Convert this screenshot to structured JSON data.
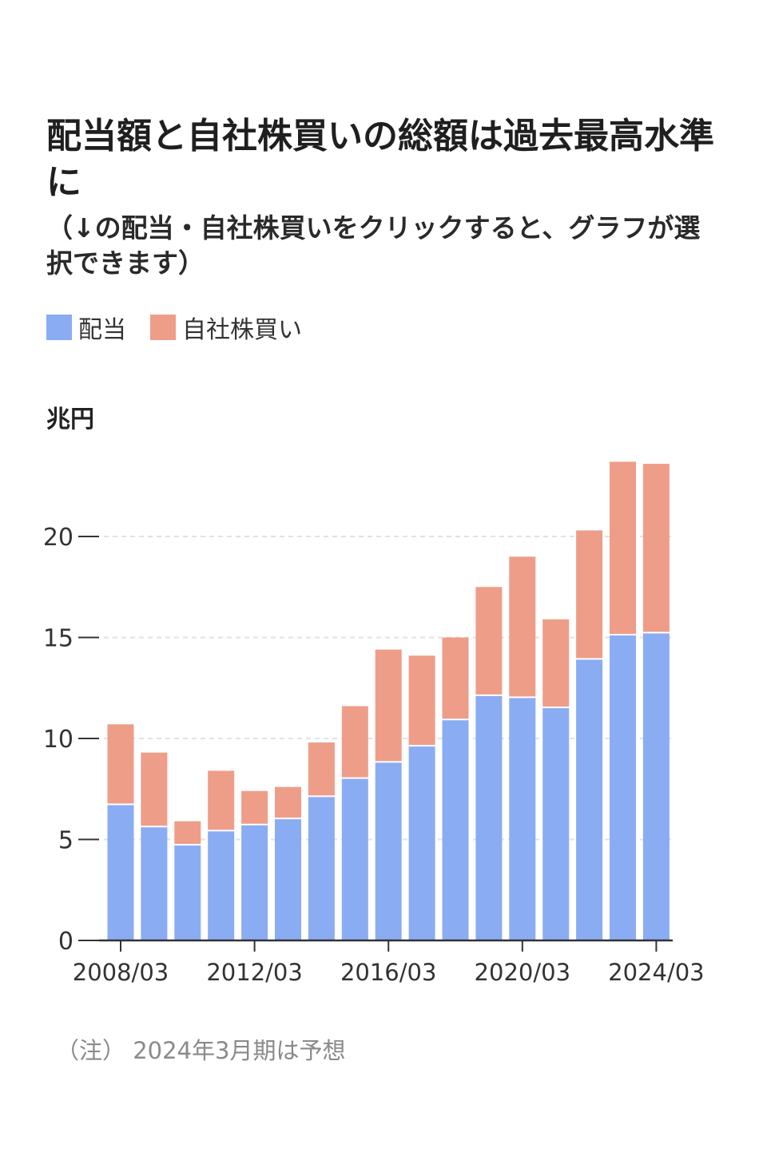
{
  "title": "配当額と自社株買いの総額は過去最高水準に",
  "subtitle": "（↓の配当・自社株買いをクリックすると、グラフが選択できます）",
  "legend": [
    {
      "label": "配当",
      "color": "#8aacf3"
    },
    {
      "label": "自社株買い",
      "color": "#ee9d88"
    }
  ],
  "unit": "兆円",
  "note": "（注） 2024年3月期は予想",
  "chart_data": {
    "type": "bar",
    "stacked": true,
    "categories": [
      "2008/03",
      "2009/03",
      "2010/03",
      "2011/03",
      "2012/03",
      "2013/03",
      "2014/03",
      "2015/03",
      "2016/03",
      "2017/03",
      "2018/03",
      "2019/03",
      "2020/03",
      "2021/03",
      "2022/03",
      "2023/03",
      "2024/03"
    ],
    "x_tick_labels": [
      "2008/03",
      "2012/03",
      "2016/03",
      "2020/03",
      "2024/03"
    ],
    "series": [
      {
        "name": "配当",
        "color": "#8aacf3",
        "values": [
          6.7,
          5.6,
          4.7,
          5.4,
          5.7,
          6.0,
          7.1,
          8.0,
          8.8,
          9.6,
          10.9,
          12.1,
          12.0,
          11.5,
          13.9,
          15.1,
          15.2
        ]
      },
      {
        "name": "自社株買い",
        "color": "#ee9d88",
        "values": [
          4.0,
          3.7,
          1.2,
          3.0,
          1.7,
          1.6,
          2.7,
          3.6,
          5.6,
          4.5,
          4.1,
          5.4,
          7.0,
          4.4,
          6.4,
          8.6,
          8.4
        ]
      }
    ],
    "ylim": [
      0,
      24
    ],
    "y_ticks": [
      0,
      5,
      10,
      15,
      20
    ],
    "grid": true
  }
}
